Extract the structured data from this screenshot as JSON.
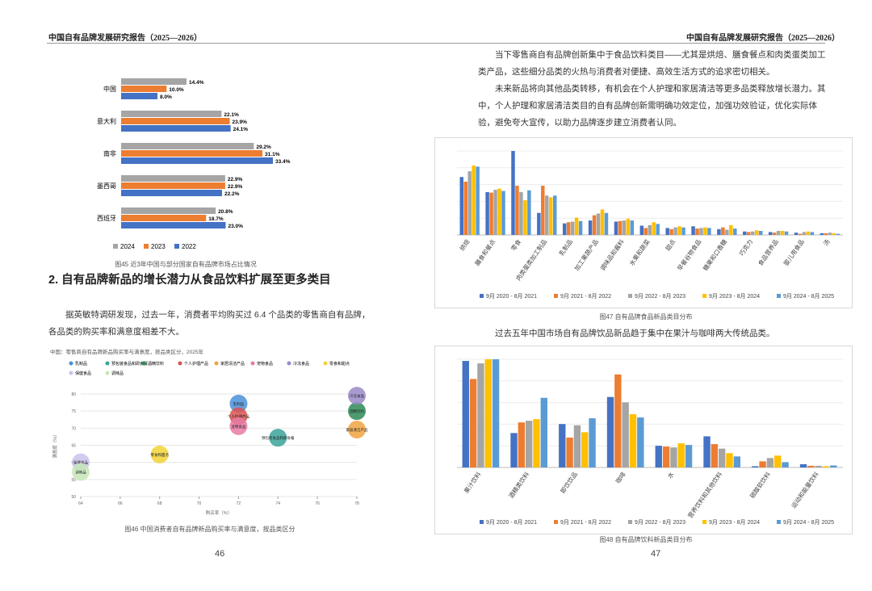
{
  "header": {
    "left": "中国自有品牌发展研究报告（2025—2026）",
    "right": "中国自有品牌发展研究报告（2025—2026）"
  },
  "left_page": {
    "heading": "2. 自有品牌新品的增长潜力从食品饮料扩展至更多类目",
    "paragraph": "据英敏特调研发现，过去一年，消费者平均购买过 6.4 个品类的零售商自有品牌，各品类的购买率和满意度相差不大。",
    "page_number": "46"
  },
  "right_page": {
    "paragraphs": [
      "当下零售商自有品牌创新集中于食品饮料类目——尤其是烘焙、膳食餐点和肉类蛋类加工类产品，这些细分品类的火热与消费者对便捷、高效生活方式的追求密切相关。",
      "未来新品将向其他品类转移，有机会在个人护理和家居清洁等更多品类释放增长潜力。其中，个人护理和家居清洁类目的自有品牌创新需明确功效定位，加强功效验证，优化实际体验，避免夸大宣传，以助力品牌逐步建立消费者认同。",
      "过去五年中国市场自有品牌饮品新品趋于集中在果汁与咖啡两大传统品类。"
    ],
    "page_number": "47"
  },
  "chart_data": [
    {
      "type": "hbar",
      "caption": "图45 近3年中国与部分国家自有品牌市场占比情况",
      "categories": [
        "中国",
        "意大利",
        "南非",
        "墨西哥",
        "西班牙"
      ],
      "series": [
        {
          "name": "2024",
          "color": "#a5a5a5",
          "values": [
            14.4,
            22.1,
            29.2,
            22.9,
            20.8
          ],
          "value_labels": [
            "14.4%",
            "22.1%",
            "29.2%",
            "22.9%",
            "20.8%"
          ]
        },
        {
          "name": "2023",
          "color": "#ed7d31",
          "values": [
            10.0,
            23.9,
            31.1,
            22.9,
            18.7
          ],
          "value_labels": [
            "10.0%",
            "23.9%",
            "31.1%",
            "22.9%",
            "18.7%"
          ]
        },
        {
          "name": "2022",
          "color": "#4472c4",
          "values": [
            8.0,
            24.1,
            33.4,
            22.2,
            23.0
          ],
          "value_labels": [
            "8.0%",
            "24.1%",
            "33.4%",
            "22.2%",
            "23.0%"
          ]
        }
      ]
    },
    {
      "type": "bubble",
      "title": "中国：零售商自有品牌新品购买率与满意度，按品类区分，2025年",
      "caption": "图46 中国消费者自有品牌新品购买率与满意度，按品类区分",
      "x_label": "购买率（%）",
      "y_label": "满意度（%）",
      "xlim": [
        64,
        78
      ],
      "xticks": [
        64,
        66,
        68,
        70,
        72,
        74,
        76,
        78
      ],
      "ylim": [
        50,
        80
      ],
      "yticks": [
        50,
        55,
        60,
        65,
        70,
        75,
        80
      ],
      "series": [
        {
          "name": "乳制品",
          "color": "#4a90d9",
          "x": [
            72
          ],
          "values": [
            77.2
          ]
        },
        {
          "name": "预包装食品和即食餐",
          "color": "#3aa39a",
          "x": [
            74
          ],
          "values": [
            67.2
          ]
        },
        {
          "name": "酒精饮料",
          "color": "#2e8b57",
          "x": [
            78
          ],
          "values": [
            75
          ]
        },
        {
          "name": "个人护理产品",
          "color": "#d9534f",
          "x": [
            72
          ],
          "values": [
            73.5
          ]
        },
        {
          "name": "家居清洁产品",
          "color": "#f0a441",
          "x": [
            78
          ],
          "values": [
            69.6
          ]
        },
        {
          "name": "宠物食品",
          "color": "#e87aa4",
          "x": [
            72
          ],
          "values": [
            70.6
          ]
        },
        {
          "name": "冷冻食品",
          "color": "#9b88c9",
          "x": [
            78
          ],
          "values": [
            79.5
          ]
        },
        {
          "name": "零食和甜点",
          "color": "#f2d335",
          "x": [
            68
          ],
          "values": [
            62.3
          ]
        },
        {
          "name": "保健食品",
          "color": "#c9c3ea",
          "x": [
            64
          ],
          "values": [
            60
          ]
        },
        {
          "name": "调味品",
          "color": "#c7e6b8",
          "x": [
            64
          ],
          "values": [
            57.2
          ]
        }
      ]
    },
    {
      "type": "bar",
      "caption": "图47 自有品牌食品新品类目分布",
      "categories": [
        "烘焙",
        "膳食和餐点",
        "零食",
        "肉类蛋类加工制品",
        "乳制品",
        "加工果蔬产品",
        "调味品和酱料",
        "水果和蔬菜",
        "甜点",
        "早餐谷物食品",
        "糖果和口香糖",
        "巧克力",
        "食品营养品",
        "婴儿用食品",
        "汤"
      ],
      "series": [
        {
          "name": "9月 2020 - 8月 2021",
          "color": "#4472c4",
          "values": [
            10.0,
            7.4,
            14.5,
            3.8,
            2.0,
            2.5,
            2.3,
            1.6,
            1.2,
            1.5,
            1.0,
            0.6,
            0.5,
            0.4,
            0.3
          ]
        },
        {
          "name": "9月 2021 - 8月 2022",
          "color": "#ed7d31",
          "values": [
            9.2,
            7.3,
            8.5,
            8.5,
            2.2,
            3.4,
            2.4,
            1.2,
            1.0,
            1.1,
            1.3,
            0.5,
            0.4,
            0.2,
            0.3
          ]
        },
        {
          "name": "9月 2022 - 8月 2023",
          "color": "#a5a5a5",
          "values": [
            11.0,
            7.8,
            7.4,
            6.8,
            2.3,
            3.7,
            2.5,
            1.7,
            1.3,
            1.2,
            0.9,
            0.6,
            0.7,
            0.5,
            0.4
          ]
        },
        {
          "name": "9月 2023 - 8月 2024",
          "color": "#ffc000",
          "values": [
            12.0,
            8.0,
            6.0,
            6.5,
            3.0,
            4.4,
            2.8,
            2.2,
            1.5,
            1.3,
            1.7,
            0.8,
            0.7,
            0.6,
            0.3
          ]
        },
        {
          "name": "9月 2024 - 8月 2025",
          "color": "#5b9bd5",
          "values": [
            11.8,
            7.6,
            7.7,
            6.8,
            2.4,
            3.8,
            2.5,
            1.9,
            1.3,
            1.2,
            1.1,
            0.7,
            0.6,
            0.5,
            0.2
          ]
        }
      ]
    },
    {
      "type": "bar",
      "caption": "图48 自有品牌饮料新品类目分布",
      "categories": [
        "果汁饮料",
        "酒精类饮料",
        "即饮饮品",
        "咖啡",
        "水",
        "营养饮料和其他饮料",
        "碳酸软饮料",
        "运动和能量饮料"
      ],
      "series": [
        {
          "name": "9月 2020 - 8月 2021",
          "color": "#4472c4",
          "values": [
            26.0,
            8.4,
            10.6,
            17.2,
            5.3,
            7.6,
            0.3,
            0.8
          ]
        },
        {
          "name": "9月 2021 - 8月 2022",
          "color": "#ed7d31",
          "values": [
            21.6,
            11.0,
            7.3,
            22.7,
            5.1,
            5.7,
            1.5,
            0.4
          ]
        },
        {
          "name": "9月 2022 - 8月 2023",
          "color": "#a5a5a5",
          "values": [
            25.4,
            11.4,
            10.3,
            15.9,
            4.9,
            4.6,
            2.3,
            0.4
          ]
        },
        {
          "name": "9月 2023 - 8月 2024",
          "color": "#ffc000",
          "values": [
            26.4,
            11.8,
            8.6,
            13.0,
            5.9,
            3.5,
            2.9,
            0.3
          ]
        },
        {
          "name": "9月 2024 - 8月 2025",
          "color": "#5b9bd5",
          "values": [
            26.4,
            17.0,
            12.0,
            12.2,
            5.5,
            2.7,
            1.3,
            0.5
          ]
        }
      ]
    }
  ]
}
